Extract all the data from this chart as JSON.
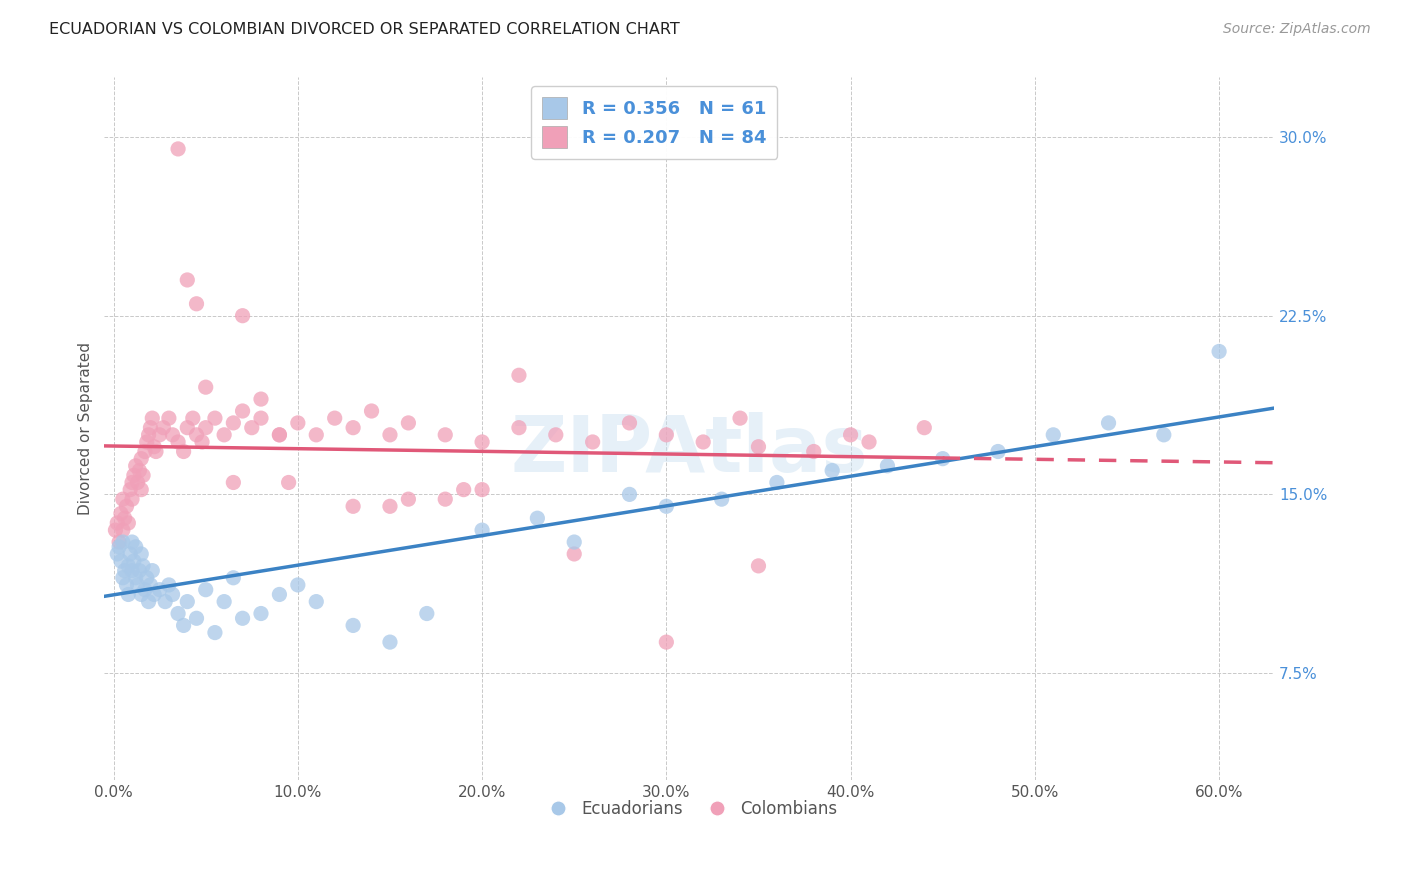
{
  "title": "ECUADORIAN VS COLOMBIAN DIVORCED OR SEPARATED CORRELATION CHART",
  "source": "Source: ZipAtlas.com",
  "xlabel_vals": [
    0.0,
    0.1,
    0.2,
    0.3,
    0.4,
    0.5,
    0.6
  ],
  "ylabel_vals": [
    0.075,
    0.15,
    0.225,
    0.3
  ],
  "xlim": [
    -0.005,
    0.63
  ],
  "ylim": [
    0.03,
    0.325
  ],
  "ylabel": "Divorced or Separated",
  "watermark": "ZIPAtlas",
  "legend_entry1": "R = 0.356   N = 61",
  "legend_entry2": "R = 0.207   N = 84",
  "blue_color": "#A8C8E8",
  "pink_color": "#F0A0B8",
  "blue_line_color": "#3B82C4",
  "pink_line_color": "#E05878",
  "ecuadorians_x": [
    0.002,
    0.003,
    0.004,
    0.005,
    0.005,
    0.006,
    0.007,
    0.008,
    0.008,
    0.009,
    0.01,
    0.01,
    0.011,
    0.012,
    0.012,
    0.013,
    0.014,
    0.015,
    0.015,
    0.016,
    0.017,
    0.018,
    0.019,
    0.02,
    0.021,
    0.022,
    0.025,
    0.028,
    0.03,
    0.032,
    0.035,
    0.038,
    0.04,
    0.045,
    0.05,
    0.055,
    0.06,
    0.065,
    0.07,
    0.08,
    0.09,
    0.1,
    0.11,
    0.13,
    0.15,
    0.17,
    0.2,
    0.23,
    0.25,
    0.28,
    0.3,
    0.33,
    0.36,
    0.39,
    0.42,
    0.45,
    0.48,
    0.51,
    0.54,
    0.57,
    0.6
  ],
  "ecuadorians_y": [
    0.125,
    0.128,
    0.122,
    0.13,
    0.115,
    0.118,
    0.112,
    0.12,
    0.108,
    0.125,
    0.13,
    0.118,
    0.122,
    0.128,
    0.115,
    0.112,
    0.118,
    0.125,
    0.108,
    0.12,
    0.11,
    0.115,
    0.105,
    0.112,
    0.118,
    0.108,
    0.11,
    0.105,
    0.112,
    0.108,
    0.1,
    0.095,
    0.105,
    0.098,
    0.11,
    0.092,
    0.105,
    0.115,
    0.098,
    0.1,
    0.108,
    0.112,
    0.105,
    0.095,
    0.088,
    0.1,
    0.135,
    0.14,
    0.13,
    0.15,
    0.145,
    0.148,
    0.155,
    0.16,
    0.162,
    0.165,
    0.168,
    0.175,
    0.18,
    0.175,
    0.21
  ],
  "colombians_x": [
    0.001,
    0.002,
    0.003,
    0.004,
    0.005,
    0.005,
    0.006,
    0.007,
    0.008,
    0.009,
    0.01,
    0.01,
    0.011,
    0.012,
    0.013,
    0.014,
    0.015,
    0.015,
    0.016,
    0.017,
    0.018,
    0.019,
    0.02,
    0.021,
    0.022,
    0.023,
    0.025,
    0.027,
    0.03,
    0.032,
    0.035,
    0.038,
    0.04,
    0.043,
    0.045,
    0.048,
    0.05,
    0.055,
    0.06,
    0.065,
    0.07,
    0.075,
    0.08,
    0.09,
    0.1,
    0.11,
    0.12,
    0.13,
    0.14,
    0.15,
    0.16,
    0.18,
    0.2,
    0.22,
    0.24,
    0.26,
    0.28,
    0.3,
    0.32,
    0.35,
    0.38,
    0.41,
    0.44,
    0.34,
    0.035,
    0.04,
    0.045,
    0.07,
    0.08,
    0.09,
    0.15,
    0.18,
    0.2,
    0.25,
    0.3,
    0.35,
    0.4,
    0.05,
    0.065,
    0.095,
    0.13,
    0.16,
    0.19,
    0.22
  ],
  "colombians_y": [
    0.135,
    0.138,
    0.13,
    0.142,
    0.148,
    0.135,
    0.14,
    0.145,
    0.138,
    0.152,
    0.155,
    0.148,
    0.158,
    0.162,
    0.155,
    0.16,
    0.165,
    0.152,
    0.158,
    0.168,
    0.172,
    0.175,
    0.178,
    0.182,
    0.17,
    0.168,
    0.175,
    0.178,
    0.182,
    0.175,
    0.172,
    0.168,
    0.178,
    0.182,
    0.175,
    0.172,
    0.178,
    0.182,
    0.175,
    0.18,
    0.185,
    0.178,
    0.182,
    0.175,
    0.18,
    0.175,
    0.182,
    0.178,
    0.185,
    0.175,
    0.18,
    0.175,
    0.172,
    0.178,
    0.175,
    0.172,
    0.18,
    0.175,
    0.172,
    0.17,
    0.168,
    0.172,
    0.178,
    0.182,
    0.295,
    0.24,
    0.23,
    0.225,
    0.19,
    0.175,
    0.145,
    0.148,
    0.152,
    0.125,
    0.088,
    0.12,
    0.175,
    0.195,
    0.155,
    0.155,
    0.145,
    0.148,
    0.152,
    0.2
  ]
}
